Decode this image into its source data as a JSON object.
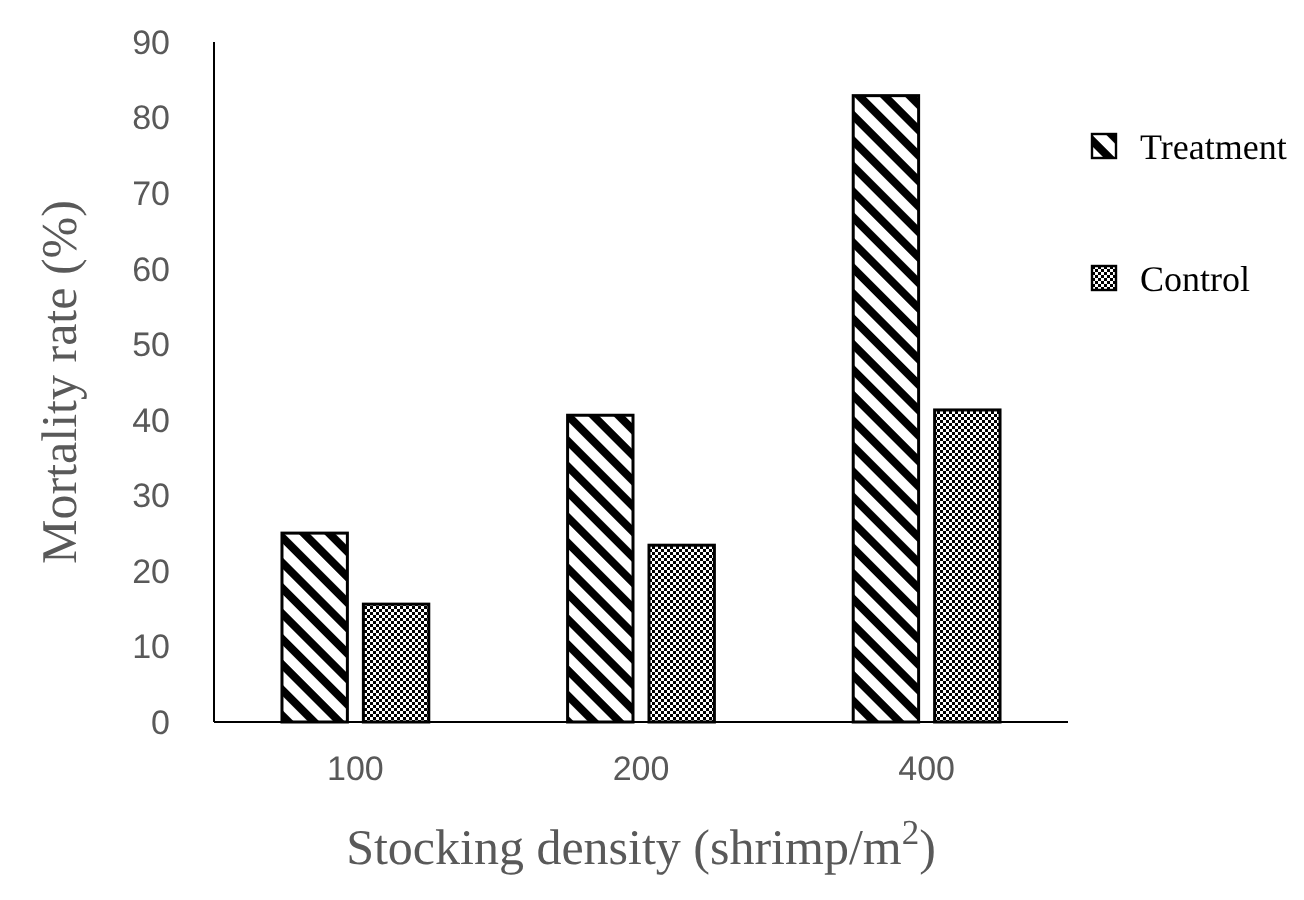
{
  "chart_data": {
    "type": "bar",
    "xlabel": "Stocking density (shrimp/m$^{2}$)",
    "ylabel": "Mortality rate (%)",
    "categories": [
      "100",
      "200",
      "400"
    ],
    "series": [
      {
        "name": "Treatment",
        "color": "#000000",
        "values": [
          25.0,
          40.6,
          82.9
        ]
      },
      {
        "name": "Control",
        "color": "#000000",
        "values": [
          15.6,
          23.4,
          41.3
        ]
      }
    ],
    "ylim": [
      0,
      90
    ],
    "yticks": [
      0,
      10,
      20,
      30,
      40,
      50,
      60,
      70,
      80,
      90
    ],
    "grid": false,
    "legend": "right"
  }
}
